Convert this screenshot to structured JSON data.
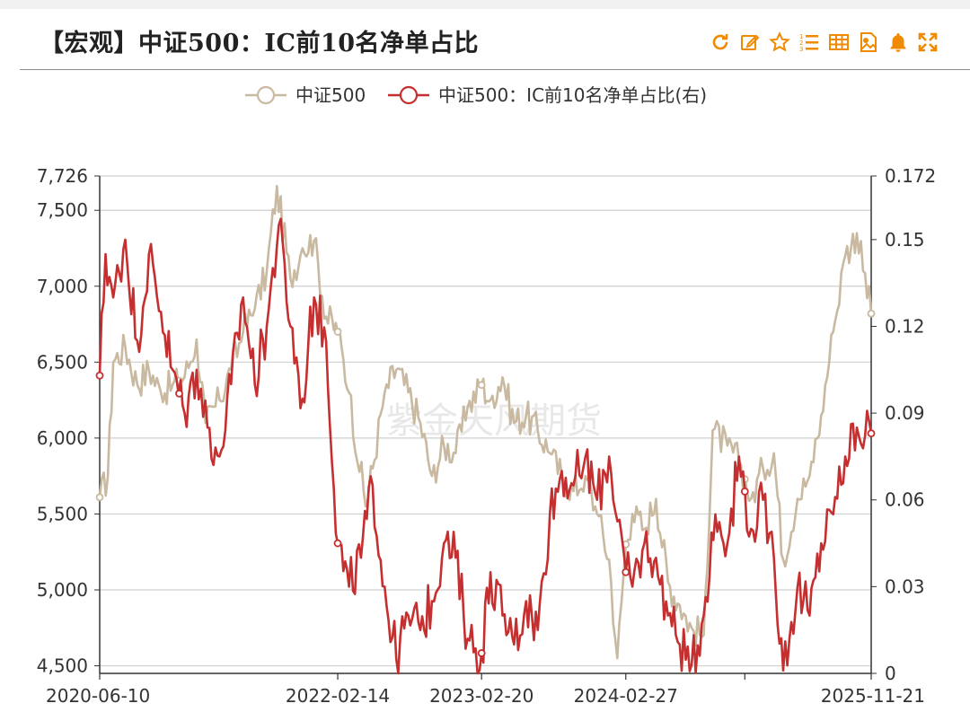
{
  "header": {
    "title": "【宏观】中证500：IC前10名净单占比"
  },
  "toolbar": {
    "icons": [
      "refresh-icon",
      "edit-icon",
      "star-icon",
      "ordered-list-icon",
      "table-icon",
      "image-icon",
      "bell-icon",
      "fullscreen-icon"
    ],
    "accent_color": "#f08a00"
  },
  "watermark": "紫金天风期货",
  "chart_data": {
    "type": "line",
    "legend_position": "top-center",
    "grid": true,
    "x_ticks": [
      "2020-06-10",
      "2022-02-14",
      "2023-02-20",
      "2024-02-27",
      "2025-11-21"
    ],
    "x_range": [
      "2020-06-10",
      "2025-11-21"
    ],
    "y_left": {
      "ticks": [
        "4,500",
        "5,000",
        "5,500",
        "6,000",
        "6,500",
        "7,000",
        "7,500",
        "7,726"
      ],
      "range": [
        4450,
        7726
      ]
    },
    "y_right": {
      "ticks": [
        "0",
        "0.03",
        "0.06",
        "0.09",
        "0.12",
        "0.15",
        "0.172"
      ],
      "range": [
        0,
        0.172
      ]
    },
    "series": [
      {
        "name": "中证500",
        "axis": "left",
        "color": "#c8b9a0",
        "points": [
          [
            "2020-06-10",
            5610
          ],
          [
            "2020-07-01",
            5750
          ],
          [
            "2020-07-15",
            6500
          ],
          [
            "2020-08-15",
            6600
          ],
          [
            "2020-09-15",
            6350
          ],
          [
            "2020-10-15",
            6450
          ],
          [
            "2020-11-15",
            6300
          ],
          [
            "2020-12-15",
            6350
          ],
          [
            "2021-01-15",
            6400
          ],
          [
            "2021-02-15",
            6650
          ],
          [
            "2021-03-10",
            6100
          ],
          [
            "2021-04-15",
            6250
          ],
          [
            "2021-05-15",
            6450
          ],
          [
            "2021-06-15",
            6700
          ],
          [
            "2021-07-15",
            6850
          ],
          [
            "2021-08-15",
            7100
          ],
          [
            "2021-09-10",
            7660
          ],
          [
            "2021-10-15",
            7050
          ],
          [
            "2021-11-15",
            7250
          ],
          [
            "2021-12-15",
            7300
          ],
          [
            "2022-01-15",
            6800
          ],
          [
            "2022-02-14",
            6700
          ],
          [
            "2022-03-15",
            6300
          ],
          [
            "2022-04-27",
            5550
          ],
          [
            "2022-05-15",
            5800
          ],
          [
            "2022-06-15",
            6300
          ],
          [
            "2022-07-15",
            6450
          ],
          [
            "2022-08-15",
            6300
          ],
          [
            "2022-09-15",
            6100
          ],
          [
            "2022-10-15",
            5750
          ],
          [
            "2022-11-15",
            5950
          ],
          [
            "2022-12-15",
            5900
          ],
          [
            "2023-01-15",
            6200
          ],
          [
            "2023-02-20",
            6350
          ],
          [
            "2023-03-15",
            6250
          ],
          [
            "2023-04-15",
            6400
          ],
          [
            "2023-05-15",
            6100
          ],
          [
            "2023-06-15",
            6150
          ],
          [
            "2023-07-15",
            6050
          ],
          [
            "2023-08-15",
            5900
          ],
          [
            "2023-09-15",
            5750
          ],
          [
            "2023-10-15",
            5650
          ],
          [
            "2023-11-15",
            5750
          ],
          [
            "2023-12-15",
            5500
          ],
          [
            "2024-01-15",
            5200
          ],
          [
            "2024-02-05",
            4550
          ],
          [
            "2024-02-27",
            5300
          ],
          [
            "2024-03-15",
            5500
          ],
          [
            "2024-04-15",
            5400
          ],
          [
            "2024-05-15",
            5600
          ],
          [
            "2024-06-15",
            5050
          ],
          [
            "2024-07-15",
            4900
          ],
          [
            "2024-08-15",
            4750
          ],
          [
            "2024-09-15",
            4700
          ],
          [
            "2024-10-08",
            6050
          ],
          [
            "2024-11-15",
            5950
          ],
          [
            "2024-12-15",
            5850
          ],
          [
            "2025-01-15",
            5600
          ],
          [
            "2025-02-15",
            5800
          ],
          [
            "2025-03-15",
            5900
          ],
          [
            "2025-04-08",
            5200
          ],
          [
            "2025-05-15",
            5600
          ],
          [
            "2025-06-15",
            5750
          ],
          [
            "2025-07-15",
            6150
          ],
          [
            "2025-08-15",
            6700
          ],
          [
            "2025-09-15",
            7200
          ],
          [
            "2025-10-15",
            7350
          ],
          [
            "2025-11-21",
            6820
          ]
        ]
      },
      {
        "name": "中证500：IC前10名净单占比(右)",
        "axis": "right",
        "color": "#c62f2f",
        "points": [
          [
            "2020-06-10",
            0.103
          ],
          [
            "2020-06-25",
            0.145
          ],
          [
            "2020-07-15",
            0.13
          ],
          [
            "2020-08-15",
            0.15
          ],
          [
            "2020-09-15",
            0.115
          ],
          [
            "2020-10-15",
            0.145
          ],
          [
            "2020-11-15",
            0.125
          ],
          [
            "2020-12-15",
            0.105
          ],
          [
            "2021-01-15",
            0.09
          ],
          [
            "2021-02-15",
            0.105
          ],
          [
            "2021-03-15",
            0.085
          ],
          [
            "2021-04-15",
            0.075
          ],
          [
            "2021-05-15",
            0.1
          ],
          [
            "2021-06-15",
            0.13
          ],
          [
            "2021-07-15",
            0.1
          ],
          [
            "2021-08-15",
            0.12
          ],
          [
            "2021-09-15",
            0.155
          ],
          [
            "2021-10-15",
            0.12
          ],
          [
            "2021-11-15",
            0.095
          ],
          [
            "2021-12-15",
            0.13
          ],
          [
            "2022-01-15",
            0.115
          ],
          [
            "2022-02-14",
            0.045
          ],
          [
            "2022-03-15",
            0.03
          ],
          [
            "2022-04-15",
            0.04
          ],
          [
            "2022-05-15",
            0.065
          ],
          [
            "2022-06-15",
            0.03
          ],
          [
            "2022-07-15",
            0.005
          ],
          [
            "2022-08-15",
            0.02
          ],
          [
            "2022-09-15",
            0.015
          ],
          [
            "2022-10-15",
            0.025
          ],
          [
            "2022-11-15",
            0.045
          ],
          [
            "2022-12-15",
            0.04
          ],
          [
            "2023-01-15",
            0.012
          ],
          [
            "2023-02-20",
            0.007
          ],
          [
            "2023-03-15",
            0.035
          ],
          [
            "2023-04-15",
            0.02
          ],
          [
            "2023-05-15",
            0.01
          ],
          [
            "2023-06-15",
            0.025
          ],
          [
            "2023-07-15",
            0.015
          ],
          [
            "2023-08-15",
            0.055
          ],
          [
            "2023-09-15",
            0.07
          ],
          [
            "2023-10-15",
            0.065
          ],
          [
            "2023-11-15",
            0.075
          ],
          [
            "2023-12-15",
            0.06
          ],
          [
            "2024-01-15",
            0.075
          ],
          [
            "2024-02-27",
            0.035
          ],
          [
            "2024-03-15",
            0.03
          ],
          [
            "2024-04-15",
            0.045
          ],
          [
            "2024-05-15",
            0.04
          ],
          [
            "2024-06-15",
            0.02
          ],
          [
            "2024-07-15",
            0.01
          ],
          [
            "2024-08-15",
            0.003
          ],
          [
            "2024-09-15",
            0.02
          ],
          [
            "2024-10-15",
            0.055
          ],
          [
            "2024-11-15",
            0.045
          ],
          [
            "2024-12-15",
            0.075
          ],
          [
            "2025-01-15",
            0.05
          ],
          [
            "2025-02-15",
            0.06
          ],
          [
            "2025-03-15",
            0.04
          ],
          [
            "2025-04-08",
            0.001
          ],
          [
            "2025-05-15",
            0.03
          ],
          [
            "2025-06-15",
            0.02
          ],
          [
            "2025-07-15",
            0.045
          ],
          [
            "2025-08-15",
            0.055
          ],
          [
            "2025-09-15",
            0.075
          ],
          [
            "2025-10-15",
            0.085
          ],
          [
            "2025-11-21",
            0.083
          ]
        ]
      }
    ]
  }
}
